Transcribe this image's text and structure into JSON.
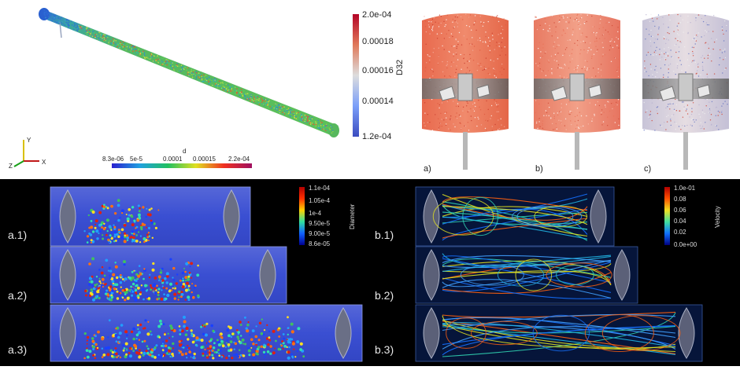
{
  "pipe_panel": {
    "colorbar_d32": {
      "title": "D32",
      "ticks": [
        "2.0e-04",
        "0.00018",
        "0.00016",
        "0.00014",
        "1.2e-04"
      ]
    },
    "colorbar_d": {
      "title": "d",
      "ticks": [
        "8.3e-06",
        "5e-5",
        "0.0001",
        "0.00015",
        "2.2e-04"
      ]
    },
    "axes": {
      "y": "Y",
      "z": "Z",
      "x": "X"
    }
  },
  "tank_panel": {
    "labels": [
      "a)",
      "b)",
      "c)"
    ]
  },
  "diameter_panel": {
    "row_labels": [
      "a.1)",
      "a.2)",
      "a.3)"
    ],
    "colorbar": {
      "title": "Diameter",
      "ticks": [
        "1.1e-04",
        "1.05e-4",
        "1e-4",
        "9.50e-5",
        "9.00e-5",
        "8.6e-05"
      ]
    }
  },
  "velocity_panel": {
    "row_labels": [
      "b.1)",
      "b.2)",
      "b.3)"
    ],
    "colorbar": {
      "title": "Velocity",
      "ticks": [
        "1.0e-01",
        "0.08",
        "0.06",
        "0.04",
        "0.02",
        "0.0e+00"
      ]
    }
  },
  "colors": {
    "blue": "#3b4cc0",
    "red": "#d0453a",
    "panel_black": "#000000",
    "vessel_blue": "#3a4fd2"
  }
}
